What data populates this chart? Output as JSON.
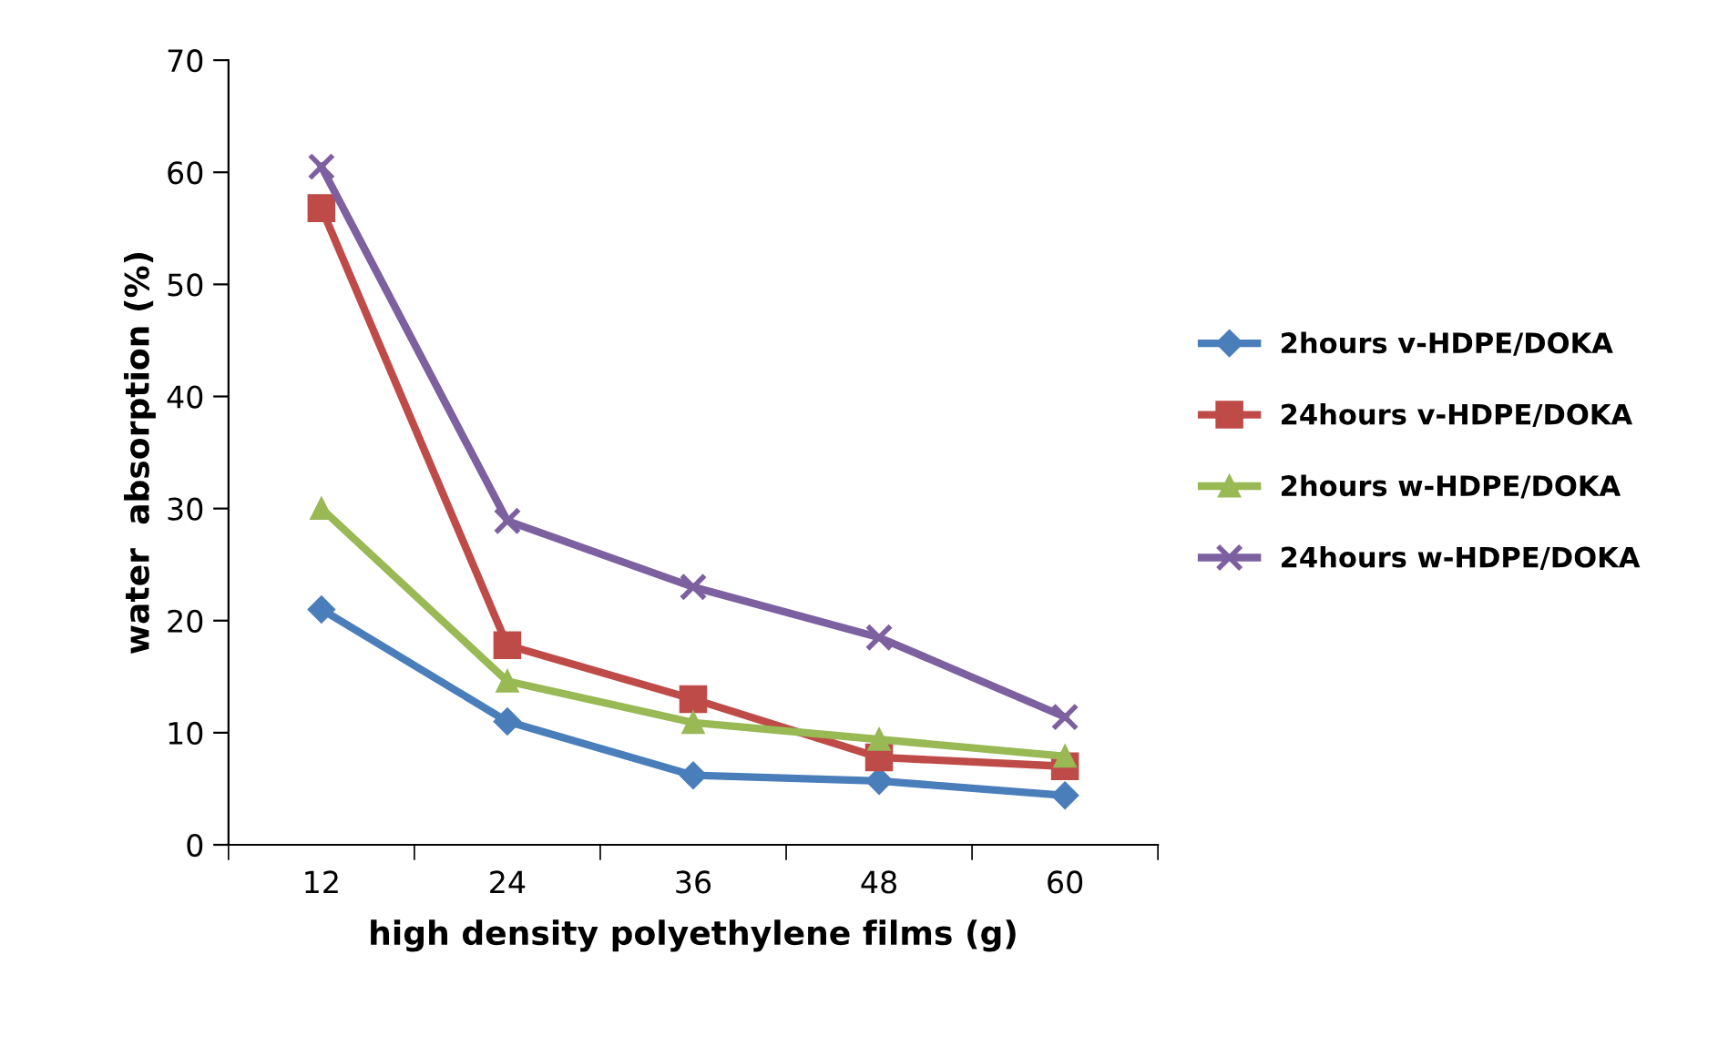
{
  "chart_data": {
    "type": "line",
    "xlabel": "high density polyethylene films (g)",
    "ylabel": "water  absorption (%)",
    "categories": [
      "12",
      "24",
      "36",
      "48",
      "60"
    ],
    "ylim": [
      0,
      70
    ],
    "yticks": [
      0,
      10,
      20,
      30,
      40,
      50,
      60,
      70
    ],
    "grid": false,
    "legend": "right",
    "line_style": "solid",
    "series": [
      {
        "name": "2hours v-HDPE/DOKA",
        "color": "#4a7ebb",
        "marker": "diamond",
        "values": [
          21,
          11,
          6.2,
          5.7,
          4.4
        ]
      },
      {
        "name": "24hours v-HDPE/DOKA",
        "color": "#be4b48",
        "marker": "square",
        "values": [
          56.8,
          17.8,
          13,
          7.8,
          7
        ]
      },
      {
        "name": "2hours w-HDPE/DOKA",
        "color": "#98b954",
        "marker": "triangle",
        "values": [
          30,
          14.6,
          10.9,
          9.4,
          7.9
        ]
      },
      {
        "name": "24hours w-HDPE/DOKA",
        "color": "#7d60a0",
        "marker": "cross",
        "values": [
          60.5,
          28.9,
          23,
          18.5,
          11.4
        ]
      }
    ]
  }
}
